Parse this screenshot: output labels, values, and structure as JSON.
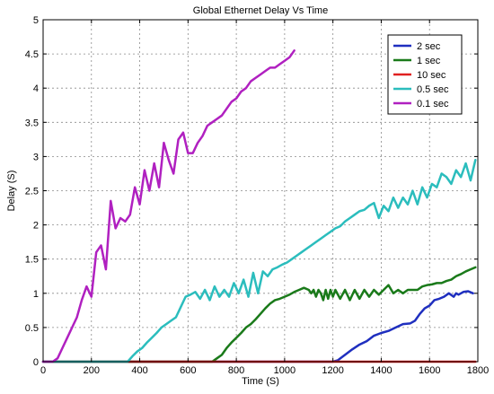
{
  "chart_data": {
    "type": "line",
    "title": "Global Ethernet Delay Vs Time",
    "xlabel": "Time (S)",
    "ylabel": "Delay (S)",
    "xlim": [
      0,
      1800
    ],
    "ylim": [
      0,
      5
    ],
    "xticks": [
      0,
      200,
      400,
      600,
      800,
      1000,
      1200,
      1400,
      1600,
      1800
    ],
    "yticks": [
      0,
      0.5,
      1,
      1.5,
      2,
      2.5,
      3,
      3.5,
      4,
      4.5,
      5
    ],
    "ytick_labels": [
      "0",
      "0.5",
      "1",
      "1.5",
      "2",
      "2.5",
      "3",
      "3.5",
      "4",
      "4.5",
      "5"
    ],
    "grid": true,
    "legend_position": "top-right",
    "series": [
      {
        "name": "2 sec",
        "color": "#1f2fbf",
        "x": [
          0,
          1200,
          1220,
          1250,
          1280,
          1310,
          1340,
          1370,
          1400,
          1430,
          1460,
          1490,
          1520,
          1540,
          1560,
          1580,
          1600,
          1620,
          1640,
          1660,
          1680,
          1700,
          1710,
          1720,
          1740,
          1760,
          1780
        ],
        "y": [
          0,
          0,
          0.02,
          0.1,
          0.18,
          0.25,
          0.3,
          0.38,
          0.42,
          0.45,
          0.5,
          0.55,
          0.56,
          0.6,
          0.7,
          0.78,
          0.82,
          0.9,
          0.92,
          0.95,
          1.0,
          0.95,
          1.0,
          0.98,
          1.02,
          1.03,
          1.0
        ]
      },
      {
        "name": "1 sec",
        "color": "#1a7a1a",
        "x": [
          0,
          700,
          720,
          740,
          760,
          780,
          800,
          820,
          840,
          860,
          880,
          900,
          920,
          940,
          960,
          980,
          1000,
          1020,
          1040,
          1060,
          1080,
          1100,
          1110,
          1120,
          1130,
          1140,
          1150,
          1160,
          1170,
          1180,
          1190,
          1200,
          1210,
          1230,
          1250,
          1270,
          1290,
          1310,
          1330,
          1350,
          1370,
          1390,
          1410,
          1430,
          1450,
          1470,
          1490,
          1510,
          1530,
          1550,
          1570,
          1590,
          1610,
          1630,
          1650,
          1670,
          1690,
          1710,
          1730,
          1750,
          1770,
          1790
        ],
        "y": [
          0,
          0,
          0.05,
          0.1,
          0.2,
          0.28,
          0.35,
          0.42,
          0.5,
          0.55,
          0.62,
          0.7,
          0.78,
          0.85,
          0.9,
          0.92,
          0.95,
          0.98,
          1.02,
          1.05,
          1.08,
          1.05,
          1.0,
          1.05,
          0.95,
          1.05,
          1.0,
          0.9,
          1.05,
          0.92,
          1.05,
          0.95,
          1.05,
          0.92,
          1.05,
          0.9,
          1.05,
          0.92,
          1.05,
          0.95,
          1.05,
          0.98,
          1.05,
          1.12,
          1.0,
          1.05,
          1.0,
          1.05,
          1.05,
          1.05,
          1.1,
          1.12,
          1.13,
          1.15,
          1.15,
          1.18,
          1.2,
          1.25,
          1.28,
          1.32,
          1.35,
          1.38
        ]
      },
      {
        "name": "10 sec",
        "color": "#e02020",
        "x": [
          0,
          1790
        ],
        "y": [
          0,
          0
        ]
      },
      {
        "name": "0.5 sec",
        "color": "#2bbdbd",
        "x": [
          0,
          350,
          370,
          390,
          410,
          430,
          450,
          470,
          490,
          510,
          530,
          550,
          570,
          590,
          610,
          630,
          650,
          670,
          690,
          710,
          730,
          750,
          770,
          790,
          810,
          830,
          850,
          870,
          890,
          910,
          930,
          950,
          970,
          990,
          1010,
          1030,
          1050,
          1070,
          1090,
          1110,
          1130,
          1150,
          1170,
          1190,
          1210,
          1230,
          1250,
          1270,
          1290,
          1310,
          1330,
          1350,
          1370,
          1390,
          1410,
          1430,
          1450,
          1470,
          1490,
          1510,
          1530,
          1550,
          1570,
          1590,
          1610,
          1630,
          1650,
          1670,
          1690,
          1710,
          1730,
          1750,
          1770,
          1790
        ],
        "y": [
          0,
          0,
          0.08,
          0.15,
          0.2,
          0.28,
          0.35,
          0.42,
          0.5,
          0.55,
          0.6,
          0.65,
          0.8,
          0.95,
          0.98,
          1.02,
          0.92,
          1.05,
          0.9,
          1.1,
          0.95,
          1.05,
          0.95,
          1.15,
          1.0,
          1.2,
          0.95,
          1.3,
          1.0,
          1.32,
          1.25,
          1.35,
          1.38,
          1.42,
          1.45,
          1.5,
          1.55,
          1.6,
          1.65,
          1.7,
          1.75,
          1.8,
          1.85,
          1.9,
          1.95,
          1.98,
          2.05,
          2.1,
          2.15,
          2.2,
          2.22,
          2.28,
          2.32,
          2.1,
          2.28,
          2.2,
          2.4,
          2.25,
          2.4,
          2.3,
          2.5,
          2.3,
          2.55,
          2.4,
          2.6,
          2.55,
          2.75,
          2.7,
          2.6,
          2.8,
          2.7,
          2.9,
          2.65,
          2.95
        ]
      },
      {
        "name": "0.1 sec",
        "color": "#b020c0",
        "x": [
          0,
          40,
          60,
          80,
          100,
          120,
          140,
          160,
          180,
          200,
          220,
          240,
          260,
          280,
          300,
          320,
          340,
          360,
          380,
          400,
          420,
          440,
          460,
          480,
          500,
          520,
          540,
          560,
          580,
          600,
          620,
          640,
          660,
          680,
          700,
          720,
          740,
          760,
          780,
          800,
          820,
          840,
          860,
          880,
          900,
          920,
          940,
          960,
          980,
          1000,
          1020,
          1040
        ],
        "y": [
          0,
          0,
          0.05,
          0.2,
          0.35,
          0.5,
          0.65,
          0.9,
          1.1,
          0.95,
          1.6,
          1.7,
          1.35,
          2.35,
          1.95,
          2.1,
          2.05,
          2.15,
          2.55,
          2.3,
          2.8,
          2.5,
          2.9,
          2.55,
          3.2,
          2.95,
          2.75,
          3.25,
          3.35,
          3.05,
          3.05,
          3.2,
          3.3,
          3.45,
          3.5,
          3.55,
          3.6,
          3.7,
          3.8,
          3.85,
          3.95,
          4.0,
          4.1,
          4.15,
          4.2,
          4.25,
          4.3,
          4.3,
          4.35,
          4.4,
          4.45,
          4.55
        ]
      }
    ]
  }
}
